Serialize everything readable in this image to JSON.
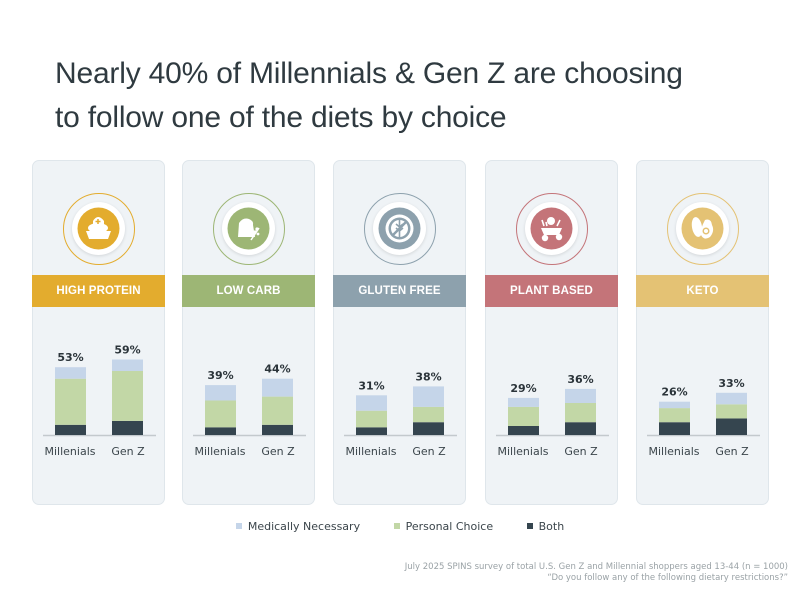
{
  "title_line1": "Nearly 40% of Millennials & Gen Z are choosing",
  "title_line2": "to follow one of the diets by choice",
  "colors": {
    "medically": "#c5d5e9",
    "personal": "#c2d7a6",
    "both": "#35454f",
    "panel_bg": "#eff3f6"
  },
  "legend": [
    {
      "label": "Medically Necessary",
      "color": "#c5d5e9"
    },
    {
      "label": "Personal Choice",
      "color": "#c2d7a6"
    },
    {
      "label": "Both",
      "color": "#35454f"
    }
  ],
  "note_line1": "July 2025 SPINS survey of total U.S. Gen Z and Millennial shoppers aged 13-44 (n = 1000)",
  "note_line2": "“Do you follow any of the following dietary restrictions?”",
  "chart_data": {
    "type": "bar",
    "stacked": true,
    "title": "Nearly 40% of Millennials & Gen Z are choosing to follow one of the diets by choice",
    "categories": [
      "Millenials",
      "Gen Z"
    ],
    "series_names": [
      "Medically Necessary",
      "Personal Choice",
      "Both"
    ],
    "unit": "%",
    "ylim": [
      0,
      60
    ],
    "panels": [
      {
        "name": "HIGH PROTEIN",
        "icon": "protein-bowl-icon",
        "color": "#e3ac2e",
        "totals_labels": [
          "53%",
          "59%"
        ],
        "totals": [
          53,
          59
        ],
        "series": [
          {
            "name": "Medically Necessary",
            "values": [
              9,
              9
            ]
          },
          {
            "name": "Personal Choice",
            "values": [
              36,
              39
            ]
          },
          {
            "name": "Both",
            "values": [
              8,
              11
            ]
          }
        ]
      },
      {
        "name": "LOW CARB",
        "icon": "flour-sack-wheat-icon",
        "color": "#9db675",
        "totals_labels": [
          "39%",
          "44%"
        ],
        "totals": [
          39,
          44
        ],
        "series": [
          {
            "name": "Medically Necessary",
            "values": [
              12,
              14
            ]
          },
          {
            "name": "Personal Choice",
            "values": [
              21,
              22
            ]
          },
          {
            "name": "Both",
            "values": [
              6,
              8
            ]
          }
        ]
      },
      {
        "name": "GLUTEN FREE",
        "icon": "no-gluten-icon",
        "color": "#8da1ad",
        "totals_labels": [
          "31%",
          "38%"
        ],
        "totals": [
          31,
          38
        ],
        "series": [
          {
            "name": "Medically Necessary",
            "values": [
              12,
              16
            ]
          },
          {
            "name": "Personal Choice",
            "values": [
              13,
              12
            ]
          },
          {
            "name": "Both",
            "values": [
              6,
              10
            ]
          }
        ]
      },
      {
        "name": "PLANT BASED",
        "icon": "vegetable-cart-icon",
        "color": "#c47479",
        "totals_labels": [
          "29%",
          "36%"
        ],
        "totals": [
          29,
          36
        ],
        "series": [
          {
            "name": "Medically Necessary",
            "values": [
              7,
              11
            ]
          },
          {
            "name": "Personal Choice",
            "values": [
              15,
              15
            ]
          },
          {
            "name": "Both",
            "values": [
              7,
              10
            ]
          }
        ]
      },
      {
        "name": "KETO",
        "icon": "avocado-egg-icon",
        "color": "#e4c274",
        "totals_labels": [
          "26%",
          "33%"
        ],
        "totals": [
          26,
          33
        ],
        "series": [
          {
            "name": "Medically Necessary",
            "values": [
              5,
              9
            ]
          },
          {
            "name": "Personal Choice",
            "values": [
              11,
              11
            ]
          },
          {
            "name": "Both",
            "values": [
              10,
              13
            ]
          }
        ]
      }
    ]
  }
}
